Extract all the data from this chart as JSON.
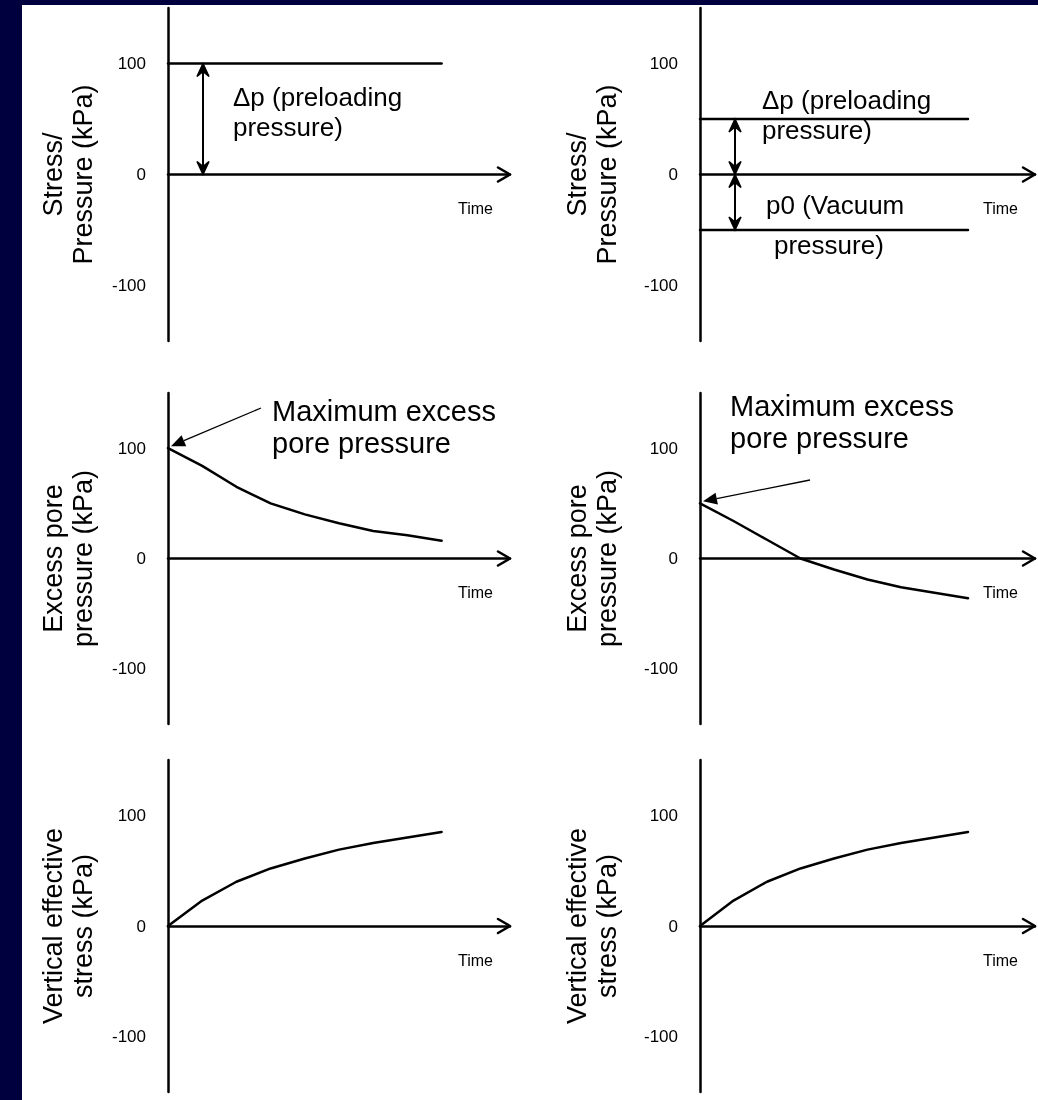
{
  "chart_data": [
    {
      "type": "line",
      "ylabel": "Stress/ Pressure (kPa)",
      "xlabel": "Time",
      "categories": [
        null,
        null,
        null,
        null,
        null,
        null,
        null,
        null,
        null,
        null,
        null
      ],
      "marker": "none",
      "ylim": [
        -150,
        150
      ],
      "yticks": [
        -100,
        0,
        100
      ],
      "series": [
        {
          "color": "#000000",
          "values": [
            100,
            100,
            100,
            100,
            100,
            100,
            100,
            100,
            100,
            null,
            null
          ]
        }
      ],
      "annotations": [
        "Δp (preloading pressure)"
      ]
    },
    {
      "type": "line",
      "ylabel": "Stress/ Pressure (kPa)",
      "xlabel": "Time",
      "categories": [
        null,
        null,
        null,
        null,
        null,
        null,
        null,
        null,
        null,
        null,
        null
      ],
      "marker": "none",
      "ylim": [
        -150,
        150
      ],
      "yticks": [
        -100,
        0,
        100
      ],
      "series": [
        {
          "color": "#000000",
          "values": [
            50,
            50,
            50,
            50,
            50,
            50,
            50,
            50,
            50,
            null,
            null
          ]
        },
        {
          "color": "#000000",
          "values": [
            -50,
            -50,
            -50,
            -50,
            -50,
            -50,
            -50,
            -50,
            -50,
            null,
            null
          ]
        }
      ],
      "annotations": [
        "Δp (preloading pressure)",
        "p0 (Vacuum pressure)"
      ]
    },
    {
      "type": "line",
      "ylabel": "Excess pore pressure (kPa)",
      "xlabel": "Time",
      "categories": [
        null,
        null,
        null,
        null,
        null,
        null,
        null,
        null,
        null,
        null,
        null
      ],
      "marker": "none",
      "ylim": [
        -150,
        150
      ],
      "yticks": [
        -100,
        0,
        100
      ],
      "series": [
        {
          "color": "#000000",
          "values": [
            100,
            84,
            65,
            50,
            40,
            32,
            25,
            21,
            16,
            null,
            null
          ]
        }
      ],
      "annotations": [
        "Maximum excess pore pressure"
      ]
    },
    {
      "type": "line",
      "ylabel": "Excess pore pressure (kPa)",
      "xlabel": "Time",
      "categories": [
        null,
        null,
        null,
        null,
        null,
        null,
        null,
        null,
        null,
        null,
        null
      ],
      "marker": "none",
      "ylim": [
        -150,
        150
      ],
      "yticks": [
        -100,
        0,
        100
      ],
      "series": [
        {
          "color": "#000000",
          "values": [
            50,
            34,
            17,
            0,
            -10,
            -19,
            -26,
            -31,
            -36,
            null,
            null
          ]
        }
      ],
      "annotations": [
        "Maximum excess pore pressure"
      ]
    },
    {
      "type": "line",
      "ylabel": "Vertical effective stress (kPa)",
      "xlabel": "Time",
      "categories": [
        null,
        null,
        null,
        null,
        null,
        null,
        null,
        null,
        null,
        null,
        null
      ],
      "marker": "none",
      "ylim": [
        -150,
        150
      ],
      "yticks": [
        -100,
        0,
        100
      ],
      "series": [
        {
          "color": "#000000",
          "values": [
            0,
            23,
            40,
            52,
            61,
            69,
            75,
            80,
            85,
            null,
            null
          ]
        }
      ]
    },
    {
      "type": "line",
      "ylabel": "Vertical effective stress (kPa)",
      "xlabel": "Time",
      "categories": [
        null,
        null,
        null,
        null,
        null,
        null,
        null,
        null,
        null,
        null,
        null
      ],
      "marker": "none",
      "ylim": [
        -150,
        150
      ],
      "yticks": [
        -100,
        0,
        100
      ],
      "series": [
        {
          "color": "#000000",
          "values": [
            0,
            23,
            40,
            52,
            61,
            69,
            75,
            80,
            85,
            null,
            null
          ]
        }
      ]
    }
  ]
}
